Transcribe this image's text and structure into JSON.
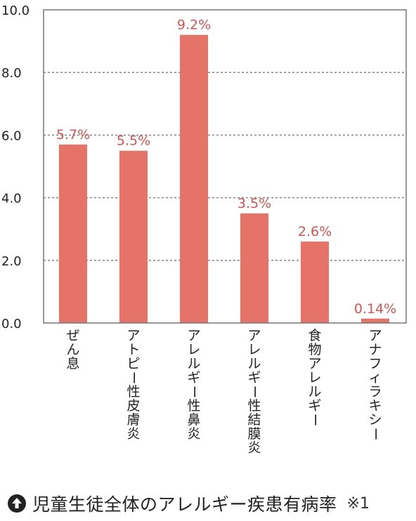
{
  "chart_data": {
    "type": "bar",
    "categories": [
      "ぜん息",
      "アトピー性皮膚炎",
      "アレルギー性鼻炎",
      "アレルギー性結膜炎",
      "食物アレルギー",
      "アナフィラキシー"
    ],
    "values": [
      5.7,
      5.5,
      9.2,
      3.5,
      2.6,
      0.14
    ],
    "value_labels": [
      "5.7%",
      "5.5%",
      "9.2%",
      "3.5%",
      "2.6%",
      "0.14%"
    ],
    "y_ticks": [
      "0.0",
      "2.0",
      "4.0",
      "6.0",
      "8.0",
      "10.0"
    ],
    "ylim": [
      0,
      10
    ],
    "grid": true,
    "bar_color": "#e57368",
    "label_color": "#d9534f",
    "title": "児童生徒全体のアレルギー疾患有病率",
    "note": "※1"
  },
  "caption": {
    "icon": "arrow-up-circle-icon",
    "text": "児童生徒全体のアレルギー疾患有病率",
    "note": "※1"
  }
}
